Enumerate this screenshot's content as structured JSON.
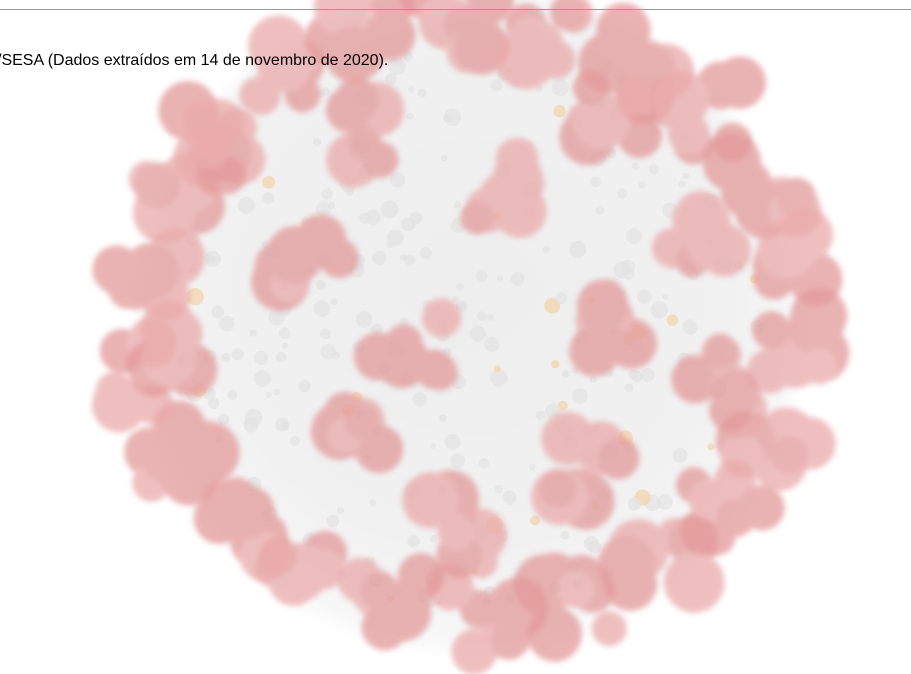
{
  "slide": {
    "caption": "/SESA (Dados extraídos em 14 de novembro de 2020)."
  }
}
